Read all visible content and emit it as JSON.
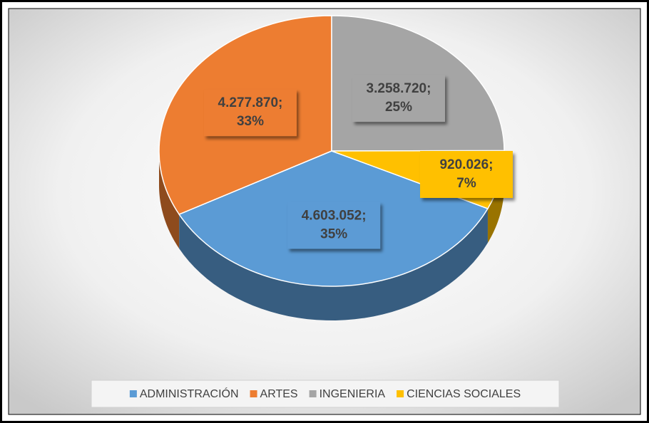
{
  "chart_data": {
    "type": "pie",
    "categories": [
      "ADMINISTRACIÓN",
      "ARTES",
      "INGENIERIA",
      "CIENCIAS SOCIALES"
    ],
    "values": [
      4603052,
      4277870,
      3258720,
      920026
    ],
    "value_labels": [
      "4.603.052; 35%",
      "4.277.870; 33%",
      "3.258.720; 25%",
      "920.026; 7%"
    ],
    "colors": [
      "#5b9bd5",
      "#ed7d31",
      "#a5a5a5",
      "#ffc000"
    ],
    "legend": "bottom"
  }
}
